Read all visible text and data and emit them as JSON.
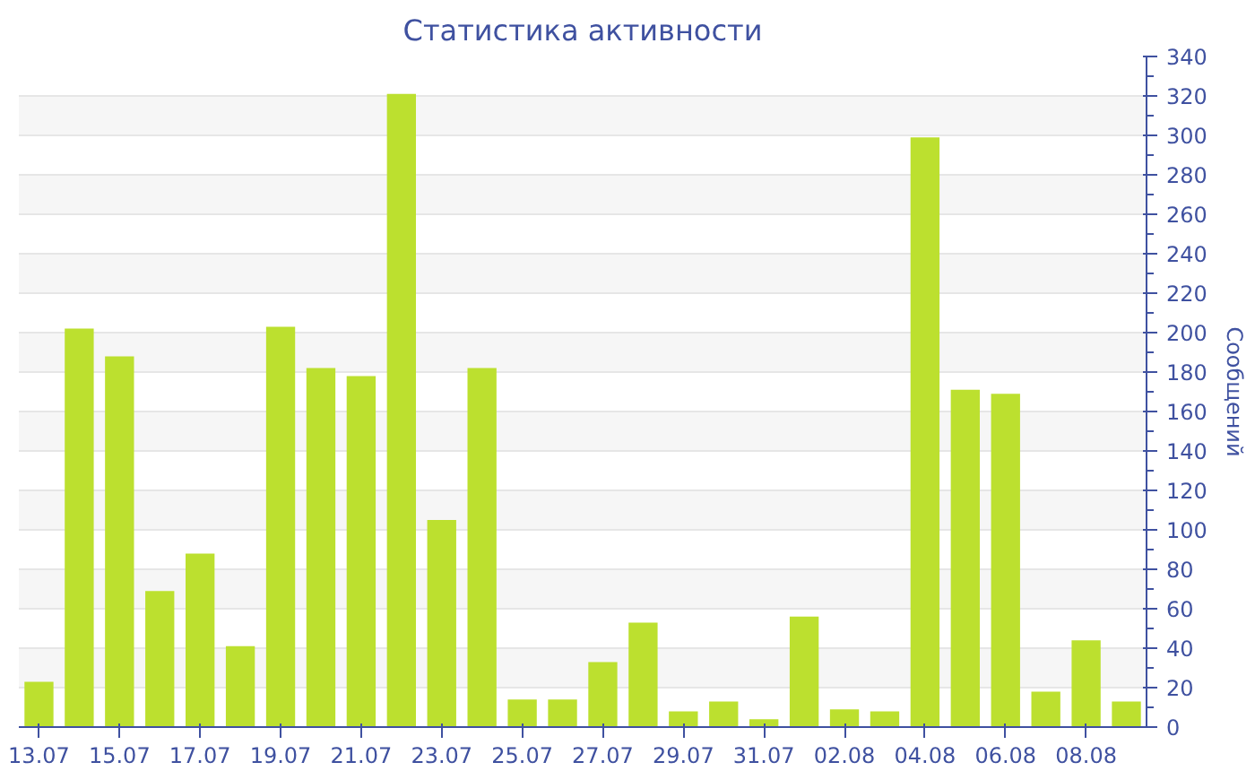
{
  "chart_data": {
    "type": "bar",
    "title": "Статистика активности",
    "ylabel": "Сообщений",
    "categories": [
      "13.07",
      null,
      "15.07",
      null,
      "17.07",
      null,
      "19.07",
      null,
      "21.07",
      null,
      "23.07",
      null,
      "25.07",
      null,
      "27.07",
      null,
      "29.07",
      null,
      "31.07",
      null,
      "02.08",
      null,
      "04.08",
      null,
      "06.08",
      null,
      "08.08",
      null
    ],
    "values": [
      23,
      202,
      188,
      69,
      88,
      41,
      203,
      182,
      178,
      321,
      105,
      182,
      14,
      14,
      33,
      53,
      8,
      13,
      4,
      56,
      9,
      8,
      299,
      171,
      169,
      18,
      44,
      13
    ],
    "color": "#bce02f",
    "ylim": [
      0,
      340
    ],
    "yticks": [
      0,
      20,
      40,
      60,
      80,
      100,
      120,
      140,
      160,
      180,
      200,
      220,
      240,
      260,
      280,
      300,
      320,
      340
    ],
    "grid": "y"
  }
}
